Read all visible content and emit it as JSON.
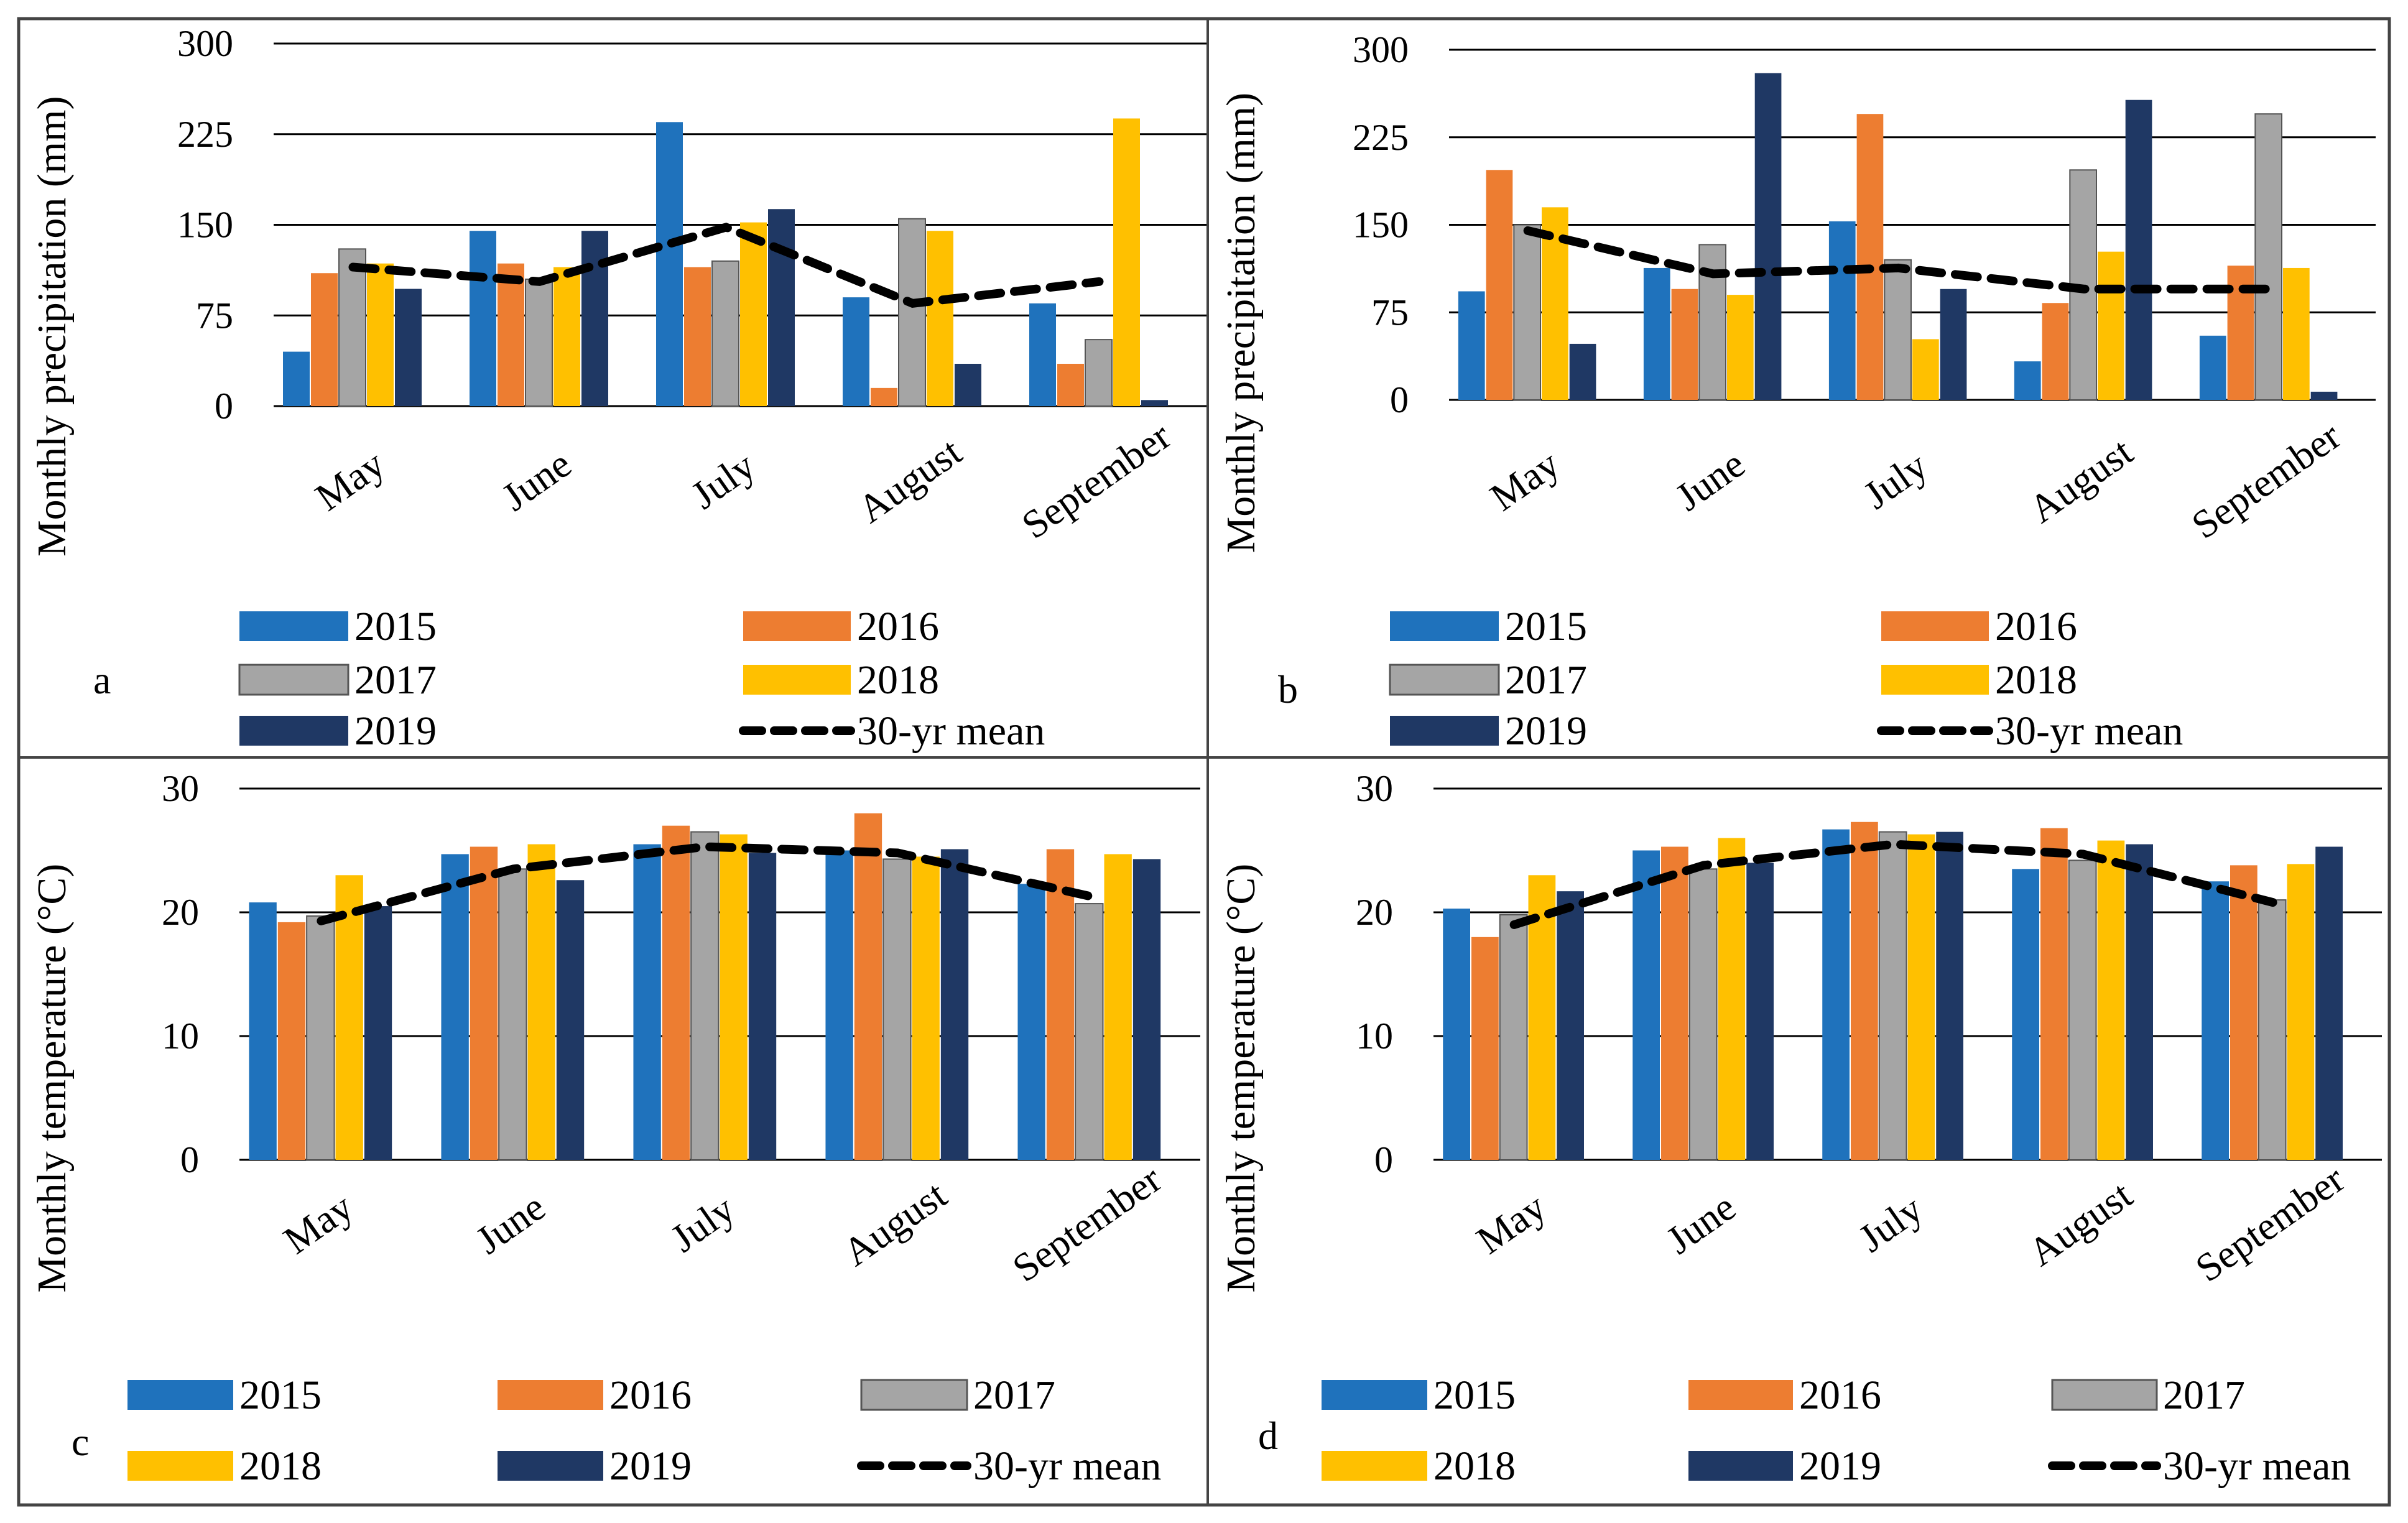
{
  "colors": {
    "2015": "#1F72BC",
    "2016": "#ED7D31",
    "2017": "#A5A5A5",
    "2018": "#FFC000",
    "2019": "#1F3864",
    "mean": "#000000",
    "grid": "#000000",
    "frame": "#444444"
  },
  "chart_data": [
    {
      "panel": "a",
      "type": "bar",
      "ylabel": "Monthly precipitation (mm)",
      "yticks": [
        "300",
        "225",
        "150",
        "75",
        "0"
      ],
      "ylim": [
        0,
        300
      ],
      "categories": [
        "May",
        "June",
        "July",
        "August",
        "September"
      ],
      "series": [
        {
          "name": "2015",
          "values": [
            45,
            145,
            235,
            90,
            85
          ]
        },
        {
          "name": "2016",
          "values": [
            110,
            118,
            115,
            15,
            35
          ]
        },
        {
          "name": "2017",
          "values": [
            130,
            105,
            120,
            155,
            55
          ]
        },
        {
          "name": "2018",
          "values": [
            118,
            115,
            152,
            145,
            238
          ]
        },
        {
          "name": "2019",
          "values": [
            97,
            145,
            163,
            35,
            5
          ]
        }
      ],
      "line": {
        "name": "30-yr mean",
        "values": [
          115,
          103,
          148,
          85,
          103
        ]
      },
      "legend_labels": [
        "2015",
        "2016",
        "2017",
        "2018",
        "2019",
        "30-yr mean"
      ]
    },
    {
      "panel": "b",
      "type": "bar",
      "ylabel": "Monthly precipitation (mm)",
      "yticks": [
        "300",
        "225",
        "150",
        "75",
        "0"
      ],
      "ylim": [
        0,
        300
      ],
      "categories": [
        "May",
        "June",
        "July",
        "August",
        "September"
      ],
      "series": [
        {
          "name": "2015",
          "values": [
            93,
            113,
            153,
            33,
            55
          ]
        },
        {
          "name": "2016",
          "values": [
            197,
            95,
            245,
            83,
            115
          ]
        },
        {
          "name": "2017",
          "values": [
            150,
            133,
            120,
            197,
            245
          ]
        },
        {
          "name": "2018",
          "values": [
            165,
            90,
            52,
            127,
            113
          ]
        },
        {
          "name": "2019",
          "values": [
            48,
            280,
            95,
            257,
            7
          ]
        }
      ],
      "line": {
        "name": "30-yr mean",
        "values": [
          145,
          108,
          113,
          95,
          95
        ]
      },
      "legend_labels": [
        "2015",
        "2016",
        "2017",
        "2018",
        "2019",
        "30-yr mean"
      ]
    },
    {
      "panel": "c",
      "type": "bar",
      "ylabel": "Monthly temperature (°C)",
      "yticks": [
        "30",
        "20",
        "10",
        "0"
      ],
      "ylim": [
        0,
        30
      ],
      "categories": [
        "May",
        "June",
        "July",
        "August",
        "September"
      ],
      "series": [
        {
          "name": "2015",
          "values": [
            20.8,
            24.7,
            25.5,
            25.0,
            22.3
          ]
        },
        {
          "name": "2016",
          "values": [
            19.2,
            25.3,
            27.0,
            28.0,
            25.1
          ]
        },
        {
          "name": "2017",
          "values": [
            19.7,
            23.5,
            26.5,
            24.3,
            20.7
          ]
        },
        {
          "name": "2018",
          "values": [
            23.0,
            25.5,
            26.3,
            24.5,
            24.7
          ]
        },
        {
          "name": "2019",
          "values": [
            20.5,
            22.6,
            24.8,
            25.1,
            24.3
          ]
        }
      ],
      "line": {
        "name": "30-yr mean",
        "values": [
          19.3,
          23.5,
          25.3,
          24.8,
          21.3
        ]
      },
      "legend_labels": [
        "2015",
        "2016",
        "2017",
        "2018",
        "2019",
        "30-yr mean"
      ]
    },
    {
      "panel": "d",
      "type": "bar",
      "ylabel": "Monthly temperature (°C)",
      "yticks": [
        "30",
        "20",
        "10",
        "0"
      ],
      "ylim": [
        0,
        30
      ],
      "categories": [
        "May",
        "June",
        "July",
        "August",
        "September"
      ],
      "series": [
        {
          "name": "2015",
          "values": [
            20.3,
            25.0,
            26.7,
            23.5,
            22.5
          ]
        },
        {
          "name": "2016",
          "values": [
            18.0,
            25.3,
            27.3,
            26.8,
            23.8
          ]
        },
        {
          "name": "2017",
          "values": [
            19.8,
            23.5,
            26.5,
            24.2,
            21.0
          ]
        },
        {
          "name": "2018",
          "values": [
            23.0,
            26.0,
            26.3,
            25.8,
            23.9
          ]
        },
        {
          "name": "2019",
          "values": [
            21.7,
            24.0,
            26.5,
            25.5,
            25.3
          ]
        }
      ],
      "line": {
        "name": "30-yr mean",
        "values": [
          19.0,
          23.8,
          25.5,
          24.7,
          20.8
        ]
      },
      "legend_labels": [
        "2015",
        "2016",
        "2017",
        "2018",
        "2019",
        "30-yr mean"
      ]
    }
  ]
}
